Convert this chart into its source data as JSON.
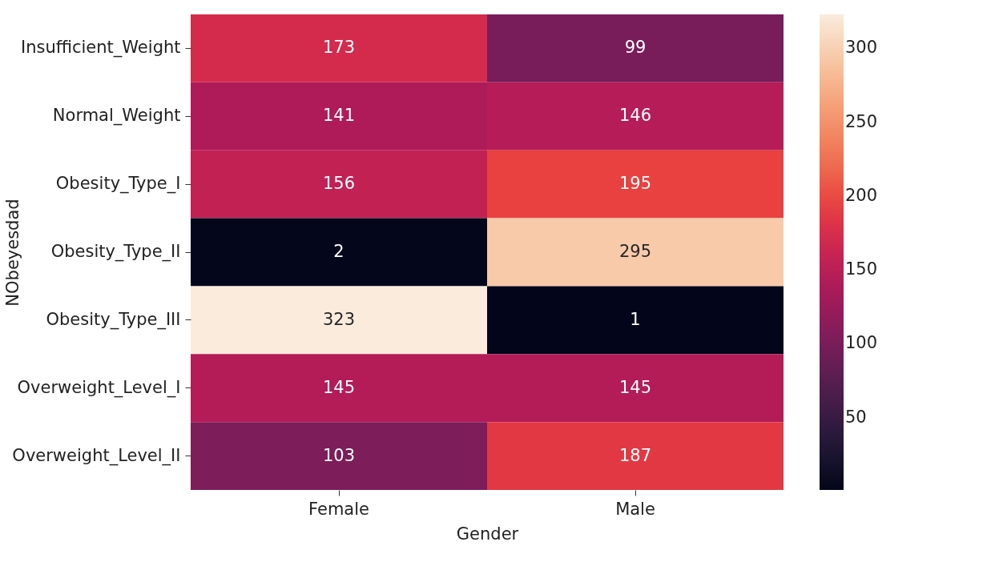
{
  "chart_data": {
    "type": "heatmap",
    "xlabel": "Gender",
    "ylabel": "NObeyesdad",
    "categories": [
      "Female",
      "Male"
    ],
    "y_categories": [
      "Insufficient_Weight",
      "Normal_Weight",
      "Obesity_Type_I",
      "Obesity_Type_II",
      "Obesity_Type_III",
      "Overweight_Level_I",
      "Overweight_Level_II"
    ],
    "cells": [
      [
        173,
        99
      ],
      [
        141,
        146
      ],
      [
        156,
        195
      ],
      [
        2,
        295
      ],
      [
        323,
        1
      ],
      [
        145,
        145
      ],
      [
        103,
        187
      ]
    ],
    "data_labels": true,
    "clim": [
      1,
      323
    ],
    "cticks": [
      50,
      100,
      150,
      200,
      250,
      300
    ]
  }
}
